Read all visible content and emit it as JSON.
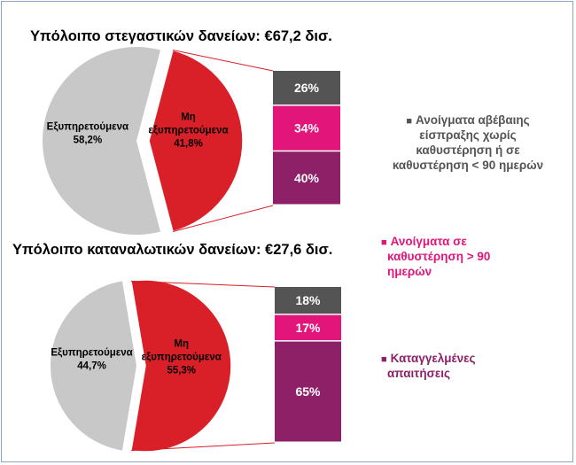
{
  "colors": {
    "serviced": "#c8c8c8",
    "non_serviced": "#d91f27",
    "dark_gray": "#545454",
    "magenta": "#e2157a",
    "purple": "#8e2068",
    "connector": "#d91f27"
  },
  "chart_data": [
    {
      "type": "pie",
      "title": "Υπόλοιπο στεγαστικών δανείων: €67,2 δισ.",
      "slices": [
        {
          "label_lines": [
            "Εξυπηρετούμενα",
            "58,2%"
          ],
          "value": 58.2,
          "color_key": "serviced"
        },
        {
          "label_lines": [
            "Μη",
            "εξυπηρετούμενα",
            "41,8%"
          ],
          "value": 41.8,
          "color_key": "non_serviced",
          "exploded": true
        }
      ],
      "breakdown": {
        "type": "stacked_bar",
        "segments": [
          {
            "label": "26%",
            "value": 26,
            "color_key": "dark_gray"
          },
          {
            "label": "34%",
            "value": 34,
            "color_key": "magenta"
          },
          {
            "label": "40%",
            "value": 40,
            "color_key": "purple"
          }
        ]
      }
    },
    {
      "type": "pie",
      "title": "Υπόλοιπο καταναλωτικών δανείων: €27,6 δισ.",
      "slices": [
        {
          "label_lines": [
            "Εξυπηρετούμενα",
            "44,7%"
          ],
          "value": 44.7,
          "color_key": "serviced"
        },
        {
          "label_lines": [
            "Μη",
            "εξυπηρετούμενα",
            "55,3%"
          ],
          "value": 55.3,
          "color_key": "non_serviced",
          "exploded": true
        }
      ],
      "breakdown": {
        "type": "stacked_bar",
        "segments": [
          {
            "label": "18%",
            "value": 18,
            "color_key": "dark_gray"
          },
          {
            "label": "17%",
            "value": 17,
            "color_key": "magenta"
          },
          {
            "label": "65%",
            "value": 65,
            "color_key": "purple"
          }
        ]
      }
    }
  ],
  "legend": [
    {
      "marker": "■",
      "lines": [
        "Ανοίγματα αβέβαιης",
        "είσπραξης χωρίς",
        "καθυστέρηση ή σε",
        "καθυστέρηση < 90 ημερών"
      ],
      "color_key": "dark_gray",
      "align": "center"
    },
    {
      "marker": "■",
      "lines": [
        "Ανοίγματα σε",
        "καθυστέρηση > 90",
        "ημερών"
      ],
      "color_key": "magenta",
      "align": "left"
    },
    {
      "marker": "■",
      "lines": [
        "Καταγγελμένες",
        "απαιτήσεις"
      ],
      "color_key": "purple",
      "align": "left"
    }
  ]
}
